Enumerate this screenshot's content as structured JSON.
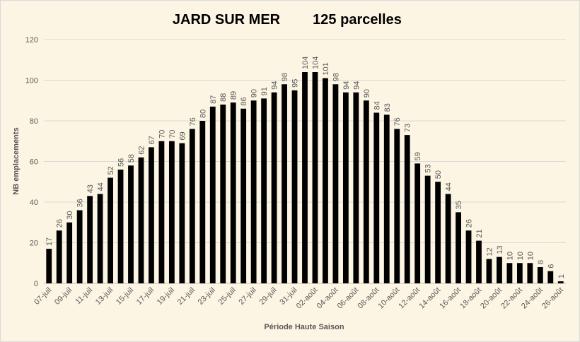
{
  "chart_data": {
    "type": "bar",
    "title": "JARD SUR MER",
    "subtitle": "125 parcelles",
    "x_label": "Période Haute Saison",
    "y_label": "NB emplacements",
    "categories": [
      "07-juil",
      null,
      "09-juil",
      null,
      "11-juil",
      null,
      "13-juil",
      null,
      "15-juil",
      null,
      "17-juil",
      null,
      "19-juil",
      null,
      "21-juil",
      null,
      "23-juil",
      null,
      "25-juil",
      null,
      "27-juil",
      null,
      "29-juil",
      null,
      "31-juil",
      null,
      "02-août",
      null,
      "04-août",
      null,
      "06-août",
      null,
      "08-août",
      null,
      "10-août",
      null,
      "12-août",
      null,
      "14-août",
      null,
      "16-août",
      null,
      "18-août",
      null,
      "20-août",
      null,
      "22-août",
      null,
      "24-août",
      null,
      "26-août"
    ],
    "values": [
      17,
      26,
      30,
      36,
      43,
      44,
      52,
      56,
      58,
      62,
      67,
      70,
      70,
      69,
      76,
      80,
      87,
      88,
      89,
      86,
      90,
      91,
      94,
      98,
      95,
      104,
      104,
      101,
      98,
      94,
      94,
      90,
      84,
      83,
      76,
      73,
      59,
      53,
      50,
      44,
      35,
      26,
      21,
      12,
      13,
      10,
      10,
      10,
      8,
      6,
      1
    ],
    "color": "#000000",
    "ylim": [
      0,
      120
    ],
    "yticks": [
      0,
      20,
      40,
      60,
      80,
      100,
      120
    ],
    "grid": true
  }
}
